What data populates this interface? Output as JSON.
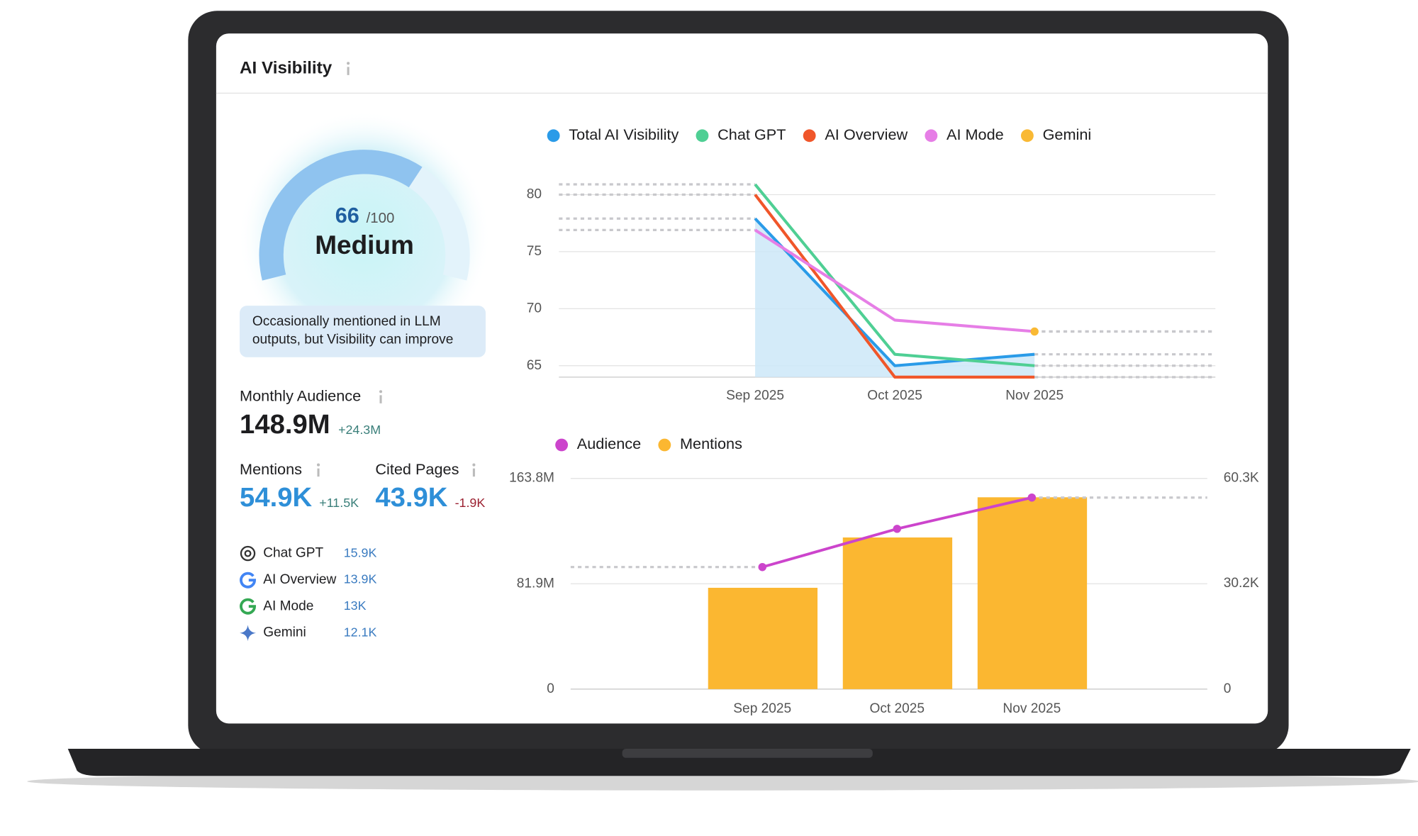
{
  "header": {
    "title": "AI Visibility"
  },
  "score": {
    "value": 66,
    "max_label": "/100",
    "range": [
      0,
      100
    ],
    "level": "Medium",
    "description": [
      "Occasionally mentioned in LLM",
      "outputs, but Visibility can improve"
    ]
  },
  "metrics": {
    "audience": {
      "label": "Monthly Audience",
      "value": "148.9M",
      "change": "+24.3M"
    },
    "mentions": {
      "label": "Mentions",
      "value": "54.9K",
      "change": "+11.5K"
    },
    "cited_pages": {
      "label": "Cited Pages",
      "value": "43.9K",
      "change": "-1.9K"
    }
  },
  "platforms": [
    {
      "name": "Chat GPT",
      "value": "15.9K"
    },
    {
      "name": "AI Overview",
      "value": "13.9K"
    },
    {
      "name": "AI Mode",
      "value": "13K"
    },
    {
      "name": "Gemini",
      "value": "12.1K"
    }
  ],
  "chart_data": [
    {
      "type": "line",
      "categories": [
        "Sep 2025",
        "Oct 2025",
        "Nov 2025"
      ],
      "ylim": [
        64,
        82
      ],
      "yticks": [
        65,
        70,
        75,
        80
      ],
      "grid": true,
      "legend": "top-left",
      "series": [
        {
          "name": "Total AI Visibility",
          "color": "#2a9be8",
          "values": [
            77.9,
            65,
            66
          ],
          "area": true
        },
        {
          "name": "Chat GPT",
          "color": "#4fcf94",
          "values": [
            80.9,
            66,
            65
          ]
        },
        {
          "name": "AI Overview",
          "color": "#f0562a",
          "values": [
            80,
            64,
            64
          ]
        },
        {
          "name": "AI Mode",
          "color": "#e67ee6",
          "values": [
            76.9,
            69,
            68
          ]
        },
        {
          "name": "Gemini",
          "color": "#f9b934",
          "values": [
            null,
            null,
            68
          ]
        }
      ]
    },
    {
      "type": "bar",
      "categories": [
        "Sep 2025",
        "Oct 2025",
        "Nov 2025"
      ],
      "ylim": [
        0,
        163800000
      ],
      "yticks": [
        0,
        {
          "value": 81900000,
          "label": "81.9M"
        },
        {
          "value": 163800000,
          "label": "163.8M"
        }
      ],
      "y2lim": [
        0,
        60300
      ],
      "y2ticks": [
        0,
        {
          "value": 30200,
          "label": "30.2K"
        },
        {
          "value": 60300,
          "label": "60.3K"
        }
      ],
      "grid": true,
      "legend": "top-left",
      "series": [
        {
          "name": "Audience",
          "color": "#cc44cc",
          "type": "line",
          "values": [
            94900000,
            124600000,
            148900000
          ]
        },
        {
          "name": "Mentions",
          "color": "#fbb731",
          "type": "bar",
          "axis": "y2",
          "values": [
            29000,
            43400,
            54900
          ]
        }
      ]
    }
  ]
}
